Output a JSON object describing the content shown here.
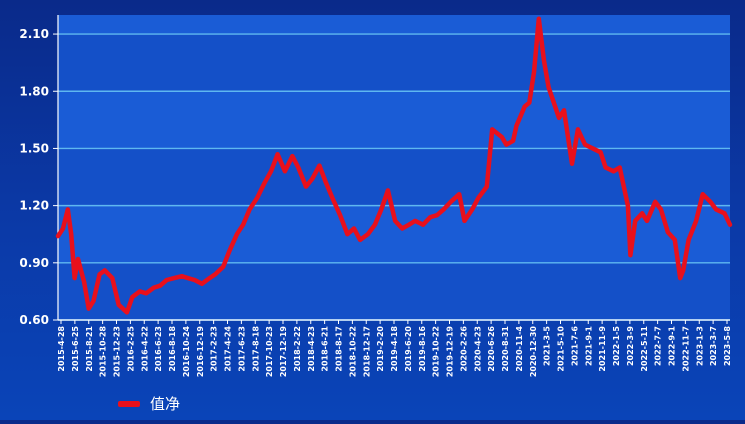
{
  "chart_data": {
    "type": "line",
    "series": [
      {
        "name": "值净",
        "color": "#e8101c",
        "points": [
          [
            "2015-04-28",
            1.04
          ],
          [
            "2015-05-20",
            1.08
          ],
          [
            "2015-06-10",
            1.18
          ],
          [
            "2015-06-25",
            1.05
          ],
          [
            "2015-07-10",
            0.82
          ],
          [
            "2015-07-25",
            0.92
          ],
          [
            "2015-08-21",
            0.8
          ],
          [
            "2015-09-10",
            0.66
          ],
          [
            "2015-10-01",
            0.7
          ],
          [
            "2015-10-28",
            0.84
          ],
          [
            "2015-11-20",
            0.86
          ],
          [
            "2015-12-23",
            0.82
          ],
          [
            "2016-01-20",
            0.68
          ],
          [
            "2016-02-25",
            0.64
          ],
          [
            "2016-03-20",
            0.72
          ],
          [
            "2016-04-22",
            0.75
          ],
          [
            "2016-05-20",
            0.74
          ],
          [
            "2016-06-23",
            0.77
          ],
          [
            "2016-07-20",
            0.78
          ],
          [
            "2016-08-18",
            0.81
          ],
          [
            "2016-09-20",
            0.82
          ],
          [
            "2016-10-24",
            0.83
          ],
          [
            "2016-11-20",
            0.82
          ],
          [
            "2016-12-19",
            0.81
          ],
          [
            "2017-01-20",
            0.79
          ],
          [
            "2017-02-23",
            0.82
          ],
          [
            "2017-03-20",
            0.84
          ],
          [
            "2017-04-24",
            0.88
          ],
          [
            "2017-05-20",
            0.96
          ],
          [
            "2017-06-23",
            1.05
          ],
          [
            "2017-07-20",
            1.1
          ],
          [
            "2017-08-18",
            1.18
          ],
          [
            "2017-09-20",
            1.24
          ],
          [
            "2017-10-23",
            1.32
          ],
          [
            "2017-11-20",
            1.38
          ],
          [
            "2017-12-19",
            1.47
          ],
          [
            "2018-01-20",
            1.38
          ],
          [
            "2018-02-22",
            1.46
          ],
          [
            "2018-03-20",
            1.4
          ],
          [
            "2018-04-23",
            1.3
          ],
          [
            "2018-05-20",
            1.34
          ],
          [
            "2018-06-21",
            1.41
          ],
          [
            "2018-07-20",
            1.32
          ],
          [
            "2018-08-17",
            1.24
          ],
          [
            "2018-09-20",
            1.15
          ],
          [
            "2018-10-22",
            1.05
          ],
          [
            "2018-11-20",
            1.08
          ],
          [
            "2018-12-17",
            1.02
          ],
          [
            "2019-01-20",
            1.05
          ],
          [
            "2019-02-20",
            1.1
          ],
          [
            "2019-03-20",
            1.18
          ],
          [
            "2019-04-18",
            1.28
          ],
          [
            "2019-05-20",
            1.12
          ],
          [
            "2019-06-20",
            1.08
          ],
          [
            "2019-07-20",
            1.1
          ],
          [
            "2019-08-16",
            1.12
          ],
          [
            "2019-09-20",
            1.1
          ],
          [
            "2019-10-22",
            1.14
          ],
          [
            "2019-11-20",
            1.15
          ],
          [
            "2019-12-19",
            1.18
          ],
          [
            "2020-01-20",
            1.22
          ],
          [
            "2020-02-26",
            1.26
          ],
          [
            "2020-03-20",
            1.12
          ],
          [
            "2020-04-23",
            1.18
          ],
          [
            "2020-05-20",
            1.24
          ],
          [
            "2020-06-26",
            1.3
          ],
          [
            "2020-07-20",
            1.6
          ],
          [
            "2020-08-31",
            1.56
          ],
          [
            "2020-09-20",
            1.52
          ],
          [
            "2020-10-20",
            1.54
          ],
          [
            "2020-11-04",
            1.62
          ],
          [
            "2020-12-10",
            1.72
          ],
          [
            "2020-12-30",
            1.74
          ],
          [
            "2021-01-20",
            1.9
          ],
          [
            "2021-02-10",
            2.18
          ],
          [
            "2021-03-05",
            1.96
          ],
          [
            "2021-03-25",
            1.82
          ],
          [
            "2021-05-10",
            1.66
          ],
          [
            "2021-06-01",
            1.7
          ],
          [
            "2021-07-06",
            1.42
          ],
          [
            "2021-08-01",
            1.6
          ],
          [
            "2021-09-01",
            1.52
          ],
          [
            "2021-11-09",
            1.48
          ],
          [
            "2021-12-01",
            1.4
          ],
          [
            "2022-01-05",
            1.38
          ],
          [
            "2022-02-01",
            1.4
          ],
          [
            "2022-03-09",
            1.2
          ],
          [
            "2022-03-20",
            0.94
          ],
          [
            "2022-04-10",
            1.12
          ],
          [
            "2022-05-11",
            1.16
          ],
          [
            "2022-06-01",
            1.12
          ],
          [
            "2022-07-07",
            1.22
          ],
          [
            "2022-08-01",
            1.18
          ],
          [
            "2022-09-01",
            1.06
          ],
          [
            "2022-10-01",
            1.02
          ],
          [
            "2022-10-25",
            0.82
          ],
          [
            "2022-11-07",
            0.86
          ],
          [
            "2022-12-01",
            1.02
          ],
          [
            "2023-01-03",
            1.12
          ],
          [
            "2023-02-01",
            1.26
          ],
          [
            "2023-03-07",
            1.22
          ],
          [
            "2023-04-01",
            1.18
          ],
          [
            "2023-05-08",
            1.16
          ],
          [
            "2023-06-01",
            1.1
          ]
        ]
      }
    ],
    "x_tick_labels": [
      "2015-4-28",
      "2015-6-25",
      "2015-8-21",
      "2015-10-28",
      "2015-12-23",
      "2016-2-25",
      "2016-4-22",
      "2016-6-23",
      "2016-8-18",
      "2016-10-24",
      "2016-12-19",
      "2017-2-23",
      "2017-4-24",
      "2017-6-23",
      "2017-8-18",
      "2017-10-23",
      "2017-12-19",
      "2018-2-22",
      "2018-4-23",
      "2018-6-21",
      "2018-8-17",
      "2018-10-22",
      "2018-12-17",
      "2019-2-20",
      "2019-4-18",
      "2019-6-20",
      "2019-8-16",
      "2019-10-22",
      "2019-12-19",
      "2020-2-26",
      "2020-4-23",
      "2020-6-26",
      "2020-8-31",
      "2020-11-4",
      "2020-12-30",
      "2021-3-5",
      "2021-5-10",
      "2021-7-6",
      "2021-9-1",
      "2021-11-9",
      "2022-1-5",
      "2022-3-9",
      "2022-5-11",
      "2022-7-7",
      "2022-9-1",
      "2022-11-7",
      "2023-1-3",
      "2023-3-7",
      "2023-5-8"
    ],
    "y_ticks": [
      0.6,
      0.9,
      1.2,
      1.5,
      1.8,
      2.1
    ],
    "y_tick_labels": [
      "0.60",
      "0.90",
      "1.20",
      "1.50",
      "1.80",
      "2.10"
    ],
    "ylim": [
      0.6,
      2.2
    ],
    "xlim": [
      "2015-04-28",
      "2023-06-01"
    ],
    "grid": true,
    "legend": "bottom-left",
    "colors": {
      "line": "#e8101c",
      "grid": "#5fb8f0",
      "axis": "#ffffff",
      "plot_band_a": "#1450c8",
      "plot_band_b": "#1a5cd6"
    }
  }
}
